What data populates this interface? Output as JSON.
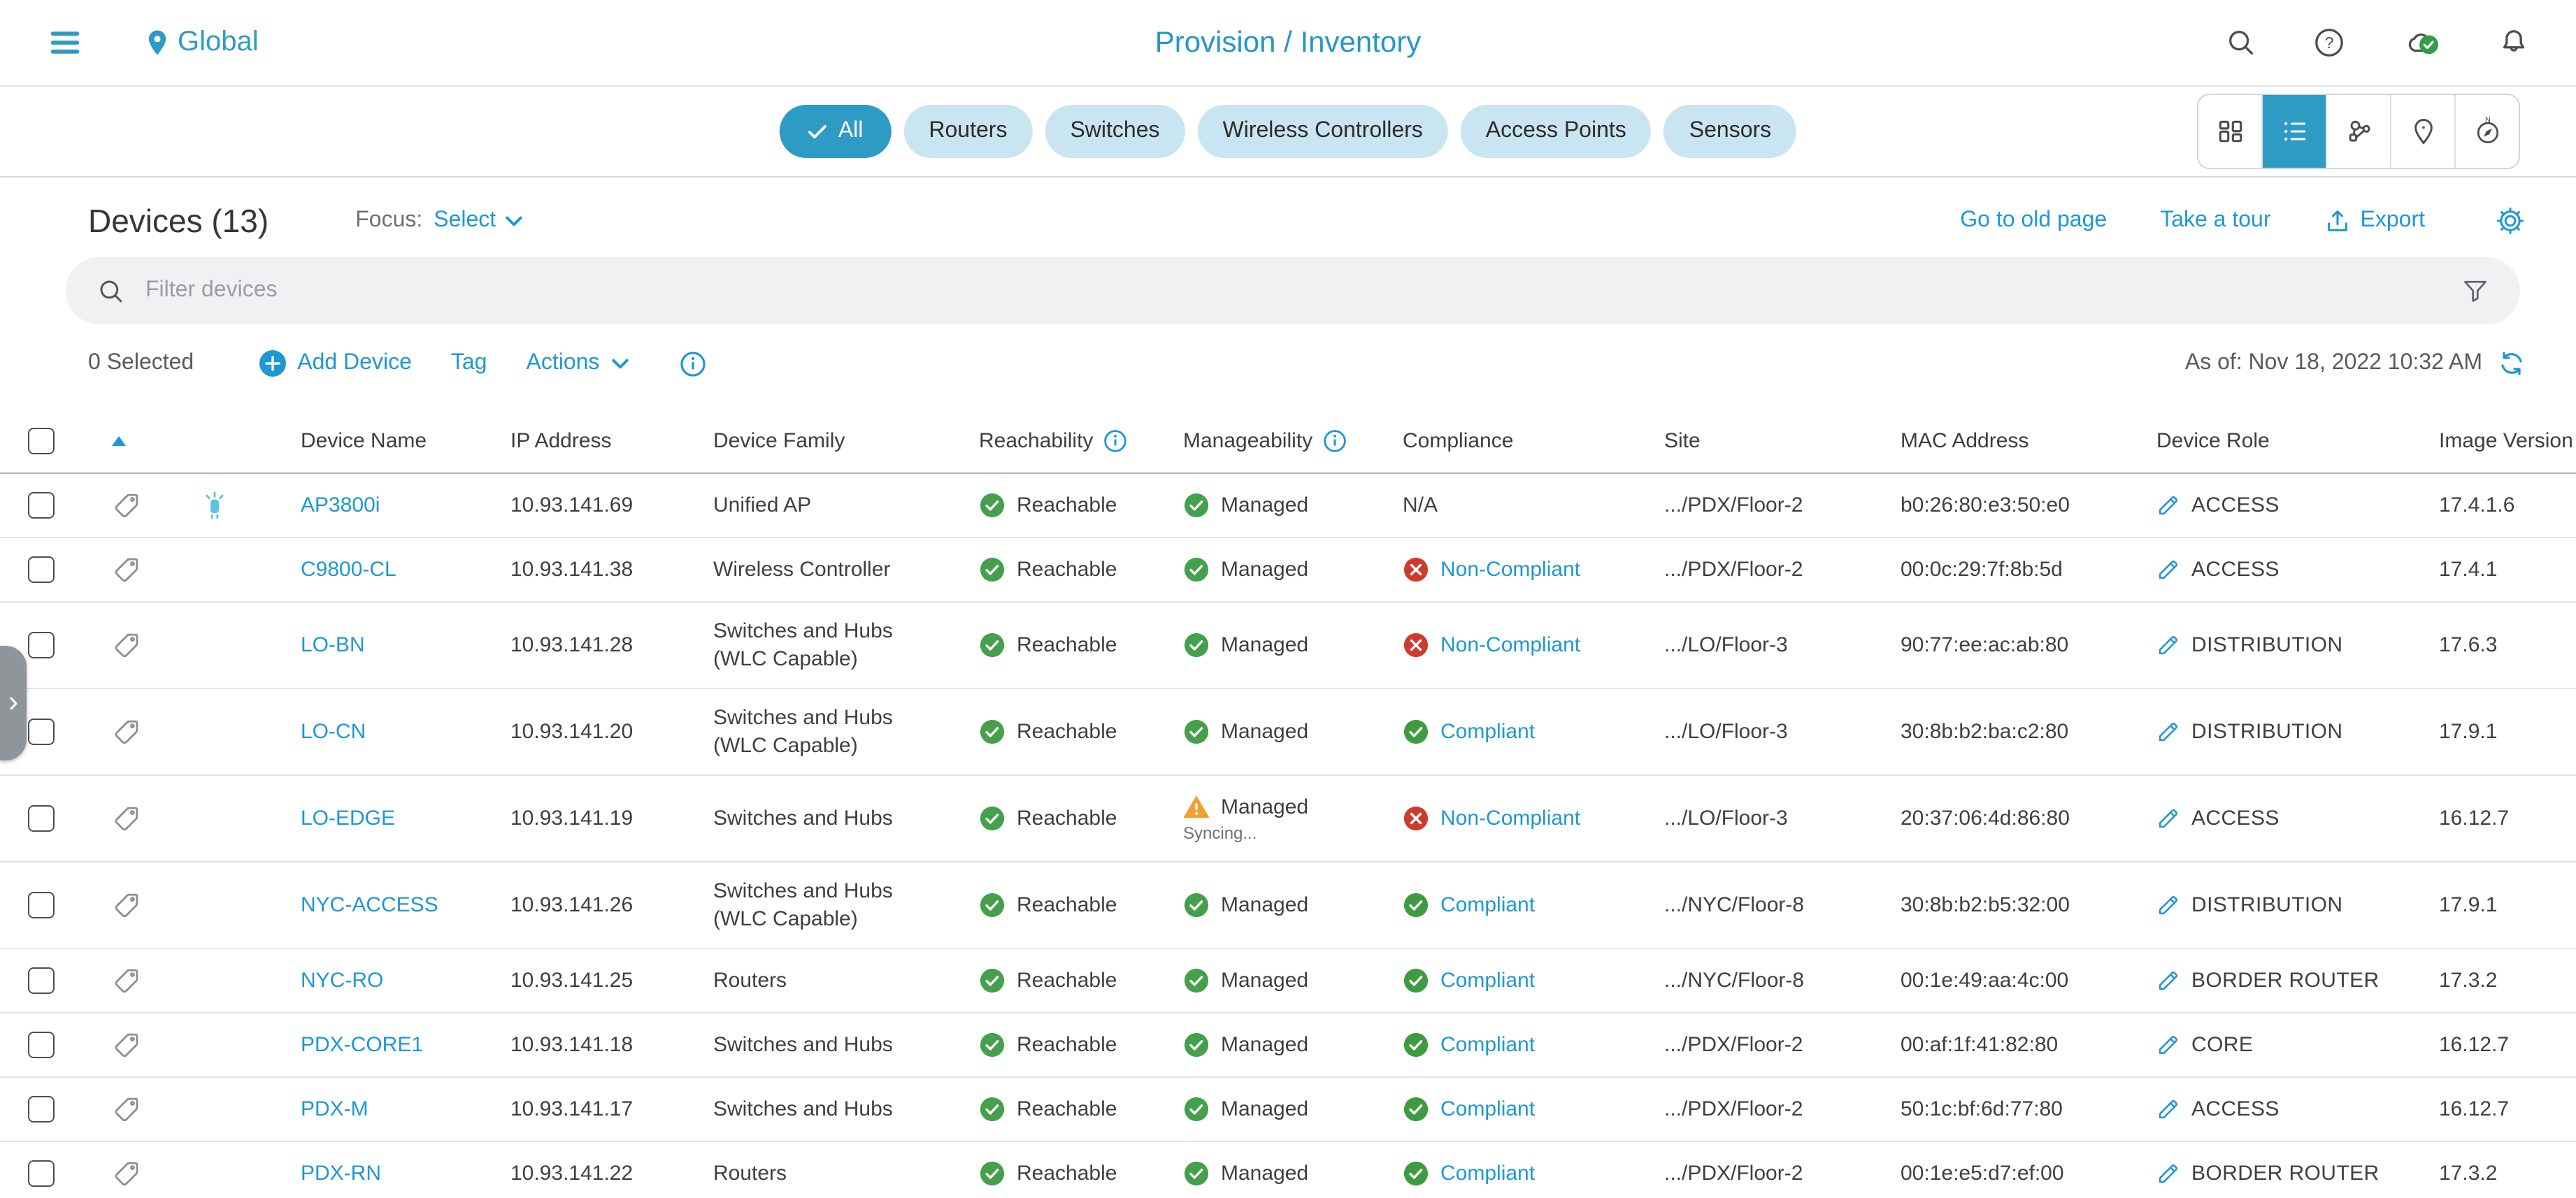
{
  "topbar": {
    "location": "Global",
    "breadcrumb": "Provision / Inventory",
    "icons": [
      "menu",
      "location-pin",
      "search",
      "help",
      "cloud-check",
      "notifications"
    ]
  },
  "filter_chips": {
    "selected": "All",
    "items": [
      "All",
      "Routers",
      "Switches",
      "Wireless Controllers",
      "Access Points",
      "Sensors"
    ]
  },
  "view_toolbar": {
    "selected": "list-view",
    "buttons": [
      "grid-view",
      "list-view",
      "topology-view",
      "map-view",
      "geo-view"
    ]
  },
  "devices_bar": {
    "title": "Devices (13)",
    "focus_label": "Focus:",
    "focus_value": "Select",
    "link_old_page": "Go to old page",
    "link_tour": "Take a tour",
    "link_export": "Export"
  },
  "filter_bar": {
    "placeholder": "Filter devices"
  },
  "actions_bar": {
    "selected_count": "0 Selected",
    "add_device": "Add Device",
    "tag": "Tag",
    "actions": "Actions",
    "as_of": "As of: Nov 18, 2022 10:32 AM"
  },
  "table": {
    "sort": "ascending",
    "columns": [
      {
        "label": "Device Name"
      },
      {
        "label": "IP Address"
      },
      {
        "label": "Device Family"
      },
      {
        "label": "Reachability",
        "info": true
      },
      {
        "label": "Manageability",
        "info": true
      },
      {
        "label": "Compliance"
      },
      {
        "label": "Site"
      },
      {
        "label": "MAC Address"
      },
      {
        "label": "Device Role"
      },
      {
        "label": "Image Version"
      }
    ],
    "rows": [
      {
        "name": "AP3800i",
        "ip": "10.93.141.69",
        "family": "Unified AP",
        "family2": "",
        "beacon": true,
        "reachability": "Reachable",
        "manageability": "Managed",
        "manage_state": "ok",
        "manage_sub": "",
        "compliance_label": "N/A",
        "compliance_state": "na",
        "site": ".../PDX/Floor-2",
        "mac": "b0:26:80:e3:50:e0",
        "role": "ACCESS",
        "version": "17.4.1.6"
      },
      {
        "name": "C9800-CL",
        "ip": "10.93.141.38",
        "family": "Wireless Controller",
        "family2": "",
        "beacon": false,
        "reachability": "Reachable",
        "manageability": "Managed",
        "manage_state": "ok",
        "manage_sub": "",
        "compliance_label": "Non-Compliant",
        "compliance_state": "non-compliant",
        "site": ".../PDX/Floor-2",
        "mac": "00:0c:29:7f:8b:5d",
        "role": "ACCESS",
        "version": "17.4.1"
      },
      {
        "name": "LO-BN",
        "ip": "10.93.141.28",
        "family": "Switches and Hubs",
        "family2": "(WLC Capable)",
        "beacon": false,
        "reachability": "Reachable",
        "manageability": "Managed",
        "manage_state": "ok",
        "manage_sub": "",
        "compliance_label": "Non-Compliant",
        "compliance_state": "non-compliant",
        "site": ".../LO/Floor-3",
        "mac": "90:77:ee:ac:ab:80",
        "role": "DISTRIBUTION",
        "version": "17.6.3"
      },
      {
        "name": "LO-CN",
        "ip": "10.93.141.20",
        "family": "Switches and Hubs",
        "family2": "(WLC Capable)",
        "beacon": false,
        "reachability": "Reachable",
        "manageability": "Managed",
        "manage_state": "ok",
        "manage_sub": "",
        "compliance_label": "Compliant",
        "compliance_state": "compliant",
        "site": ".../LO/Floor-3",
        "mac": "30:8b:b2:ba:c2:80",
        "role": "DISTRIBUTION",
        "version": "17.9.1"
      },
      {
        "name": "LO-EDGE",
        "ip": "10.93.141.19",
        "family": "Switches and Hubs",
        "family2": "",
        "beacon": false,
        "reachability": "Reachable",
        "manageability": "Managed",
        "manage_state": "warning",
        "manage_sub": "Syncing...",
        "compliance_label": "Non-Compliant",
        "compliance_state": "non-compliant",
        "site": ".../LO/Floor-3",
        "mac": "20:37:06:4d:86:80",
        "role": "ACCESS",
        "version": "16.12.7"
      },
      {
        "name": "NYC-ACCESS",
        "ip": "10.93.141.26",
        "family": "Switches and Hubs",
        "family2": "(WLC Capable)",
        "beacon": false,
        "reachability": "Reachable",
        "manageability": "Managed",
        "manage_state": "ok",
        "manage_sub": "",
        "compliance_label": "Compliant",
        "compliance_state": "compliant",
        "site": ".../NYC/Floor-8",
        "mac": "30:8b:b2:b5:32:00",
        "role": "DISTRIBUTION",
        "version": "17.9.1"
      },
      {
        "name": "NYC-RO",
        "ip": "10.93.141.25",
        "family": "Routers",
        "family2": "",
        "beacon": false,
        "reachability": "Reachable",
        "manageability": "Managed",
        "manage_state": "ok",
        "manage_sub": "",
        "compliance_label": "Compliant",
        "compliance_state": "compliant",
        "site": ".../NYC/Floor-8",
        "mac": "00:1e:49:aa:4c:00",
        "role": "BORDER ROUTER",
        "version": "17.3.2"
      },
      {
        "name": "PDX-CORE1",
        "ip": "10.93.141.18",
        "family": "Switches and Hubs",
        "family2": "",
        "beacon": false,
        "reachability": "Reachable",
        "manageability": "Managed",
        "manage_state": "ok",
        "manage_sub": "",
        "compliance_label": "Compliant",
        "compliance_state": "compliant",
        "site": ".../PDX/Floor-2",
        "mac": "00:af:1f:41:82:80",
        "role": "CORE",
        "version": "16.12.7"
      },
      {
        "name": "PDX-M",
        "ip": "10.93.141.17",
        "family": "Switches and Hubs",
        "family2": "",
        "beacon": false,
        "reachability": "Reachable",
        "manageability": "Managed",
        "manage_state": "ok",
        "manage_sub": "",
        "compliance_label": "Compliant",
        "compliance_state": "compliant",
        "site": ".../PDX/Floor-2",
        "mac": "50:1c:bf:6d:77:80",
        "role": "ACCESS",
        "version": "16.12.7"
      },
      {
        "name": "PDX-RN",
        "ip": "10.93.141.22",
        "family": "Routers",
        "family2": "",
        "beacon": false,
        "reachability": "Reachable",
        "manageability": "Managed",
        "manage_state": "ok",
        "manage_sub": "",
        "compliance_label": "Compliant",
        "compliance_state": "compliant",
        "site": ".../PDX/Floor-2",
        "mac": "00:1e:e5:d7:ef:00",
        "role": "BORDER ROUTER",
        "version": "17.3.2"
      }
    ]
  },
  "colors": {
    "accent_blue": "#2e9bc4",
    "link_blue": "#1e97d4",
    "status_green": "#44a04a",
    "compliance_green": "#3f9b3f",
    "status_red": "#ce3b2d",
    "warning_orange": "#f0a12f",
    "beacon_blue": "#5ec2e4",
    "chip_bg": "#c9e5f1"
  }
}
